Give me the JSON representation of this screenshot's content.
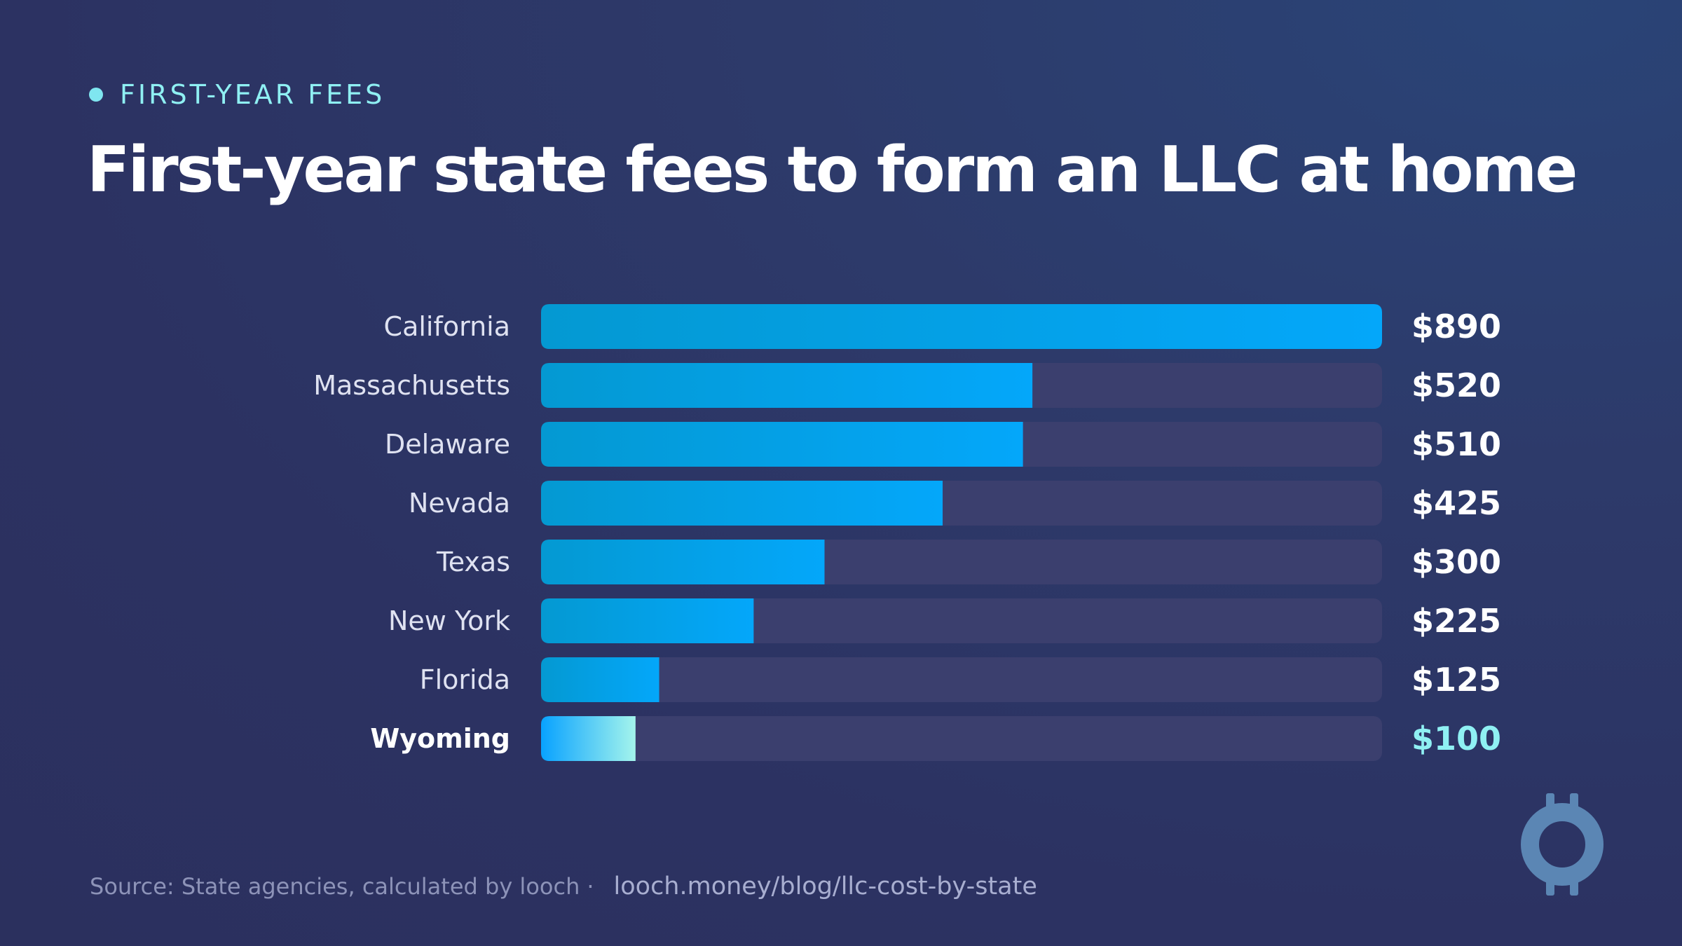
{
  "eyebrow": "FIRST-YEAR FEES",
  "colors": {
    "bar_start": "#0499d2",
    "bar_end": "#04a7fa",
    "highlight_start": "#08a2ff",
    "highlight_end": "#a4f4ec",
    "track": "#3b3f6e",
    "accent_text": "#8ff0f3",
    "background": "#2c3262"
  },
  "chart_data": {
    "type": "bar",
    "orientation": "horizontal",
    "title": "First-year state fees to form an LLC at home",
    "categories": [
      "California",
      "Massachusetts",
      "Delaware",
      "Nevada",
      "Texas",
      "New York",
      "Florida",
      "Wyoming"
    ],
    "values": [
      890,
      520,
      510,
      425,
      300,
      225,
      125,
      100
    ],
    "value_labels": [
      "$890",
      "$520",
      "$510",
      "$425",
      "$300",
      "$225",
      "$125",
      "$100"
    ],
    "highlight": "Wyoming",
    "xlim": [
      0,
      890
    ],
    "grid": false,
    "legend": "none"
  },
  "footer": {
    "source": "Source: State agencies, calculated by looch",
    "separator": "·",
    "url": "looch.money/blog/llc-cost-by-state"
  },
  "logo": {
    "icon": "looch-coin-logo-icon"
  }
}
